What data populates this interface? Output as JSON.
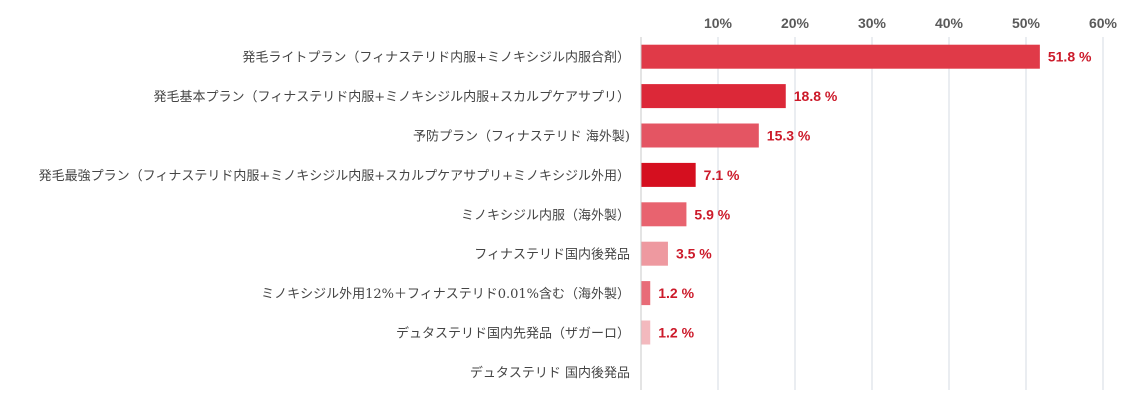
{
  "chart_data": {
    "type": "bar",
    "orientation": "horizontal",
    "xlim": [
      0,
      60
    ],
    "x_ticks": [
      "10%",
      "20%",
      "30%",
      "40%",
      "50%",
      "60%"
    ],
    "grid": true,
    "categories": [
      "発毛ライトプラン（フィナステリド内服+ミノキシジル内服合剤）",
      "発毛基本プラン（フィナステリド内服+ミノキシジル内服+スカルプケアサプリ）",
      "予防プラン（フィナステリド 海外製)",
      "発毛最強プラン（フィナステリド内服+ミノキシジル内服+スカルプケアサプリ+ミノキシジル外用）",
      "ミノキシジル内服（海外製）",
      "フィナステリド国内後発品",
      "ミノキシジル外用12%＋フィナステリド0.01%含む（海外製）",
      "デュタステリド国内先発品（ザガーロ）",
      "デュタステリド 国内後発品"
    ],
    "values": [
      51.8,
      18.8,
      15.3,
      7.1,
      5.9,
      3.5,
      1.2,
      1.2,
      0
    ],
    "value_labels": [
      "51.8 %",
      "18.8 %",
      "15.3 %",
      "7.1 %",
      "5.9 %",
      "3.5 %",
      "1.2 %",
      "1.2 %",
      ""
    ],
    "bar_colors": [
      "#e03a48",
      "#dc2838",
      "#e45563",
      "#d50f1f",
      "#e8636f",
      "#ee99a0",
      "#e86c78",
      "#f3b9be",
      "#f8d8da"
    ],
    "value_label_color": "#cc1a2a"
  }
}
